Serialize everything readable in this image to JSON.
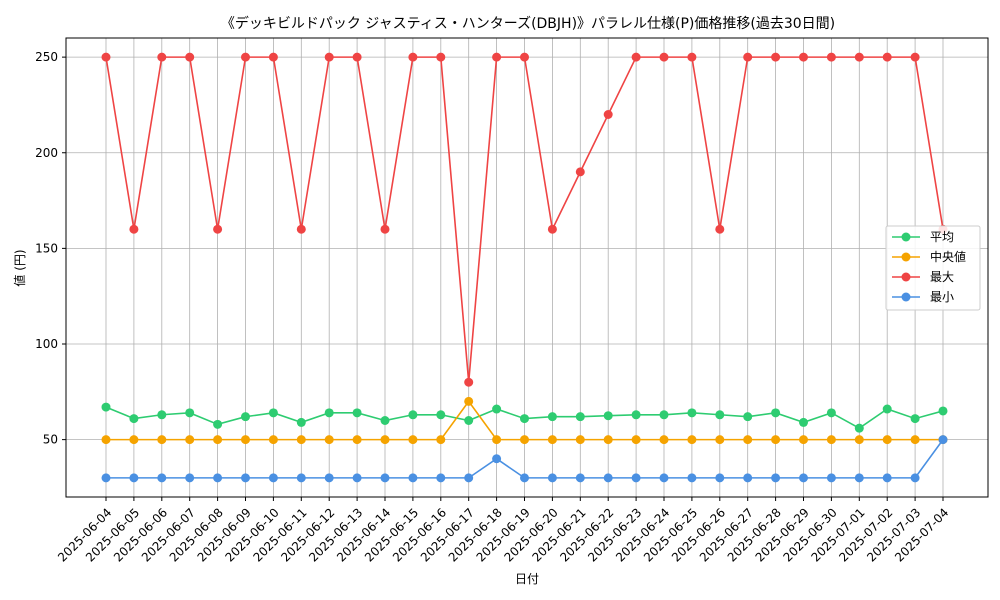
{
  "chart_data": {
    "type": "line",
    "title": "《デッキビルドパック ジャスティス・ハンターズ(DBJH)》パラレル仕様(P)価格推移(過去30日間)",
    "xlabel": "日付",
    "ylabel": "値 (円)",
    "ylim": [
      20,
      260
    ],
    "yticks": [
      50,
      100,
      150,
      200,
      250
    ],
    "grid": true,
    "legend_position": "center-right",
    "categories": [
      "2025-06-04",
      "2025-06-05",
      "2025-06-06",
      "2025-06-07",
      "2025-06-08",
      "2025-06-09",
      "2025-06-10",
      "2025-06-11",
      "2025-06-12",
      "2025-06-13",
      "2025-06-14",
      "2025-06-15",
      "2025-06-16",
      "2025-06-17",
      "2025-06-18",
      "2025-06-19",
      "2025-06-20",
      "2025-06-21",
      "2025-06-22",
      "2025-06-23",
      "2025-06-24",
      "2025-06-25",
      "2025-06-26",
      "2025-06-27",
      "2025-06-28",
      "2025-06-29",
      "2025-06-30",
      "2025-07-01",
      "2025-07-02",
      "2025-07-03",
      "2025-07-04"
    ],
    "series": [
      {
        "name": "平均",
        "color": "#2ecc71",
        "values": [
          67,
          61,
          63,
          64,
          58,
          62,
          64,
          59,
          64,
          64,
          60,
          63,
          63,
          60,
          66,
          61,
          62,
          62,
          62.5,
          63,
          63,
          64,
          63,
          62,
          64,
          59,
          64,
          56,
          66,
          61,
          65
        ]
      },
      {
        "name": "中央値",
        "color": "#f5a300",
        "values": [
          50,
          50,
          50,
          50,
          50,
          50,
          50,
          50,
          50,
          50,
          50,
          50,
          50,
          70,
          50,
          50,
          50,
          50,
          50,
          50,
          50,
          50,
          50,
          50,
          50,
          50,
          50,
          50,
          50,
          50,
          50
        ]
      },
      {
        "name": "最大",
        "color": "#ef4444",
        "values": [
          250,
          160,
          250,
          250,
          160,
          250,
          250,
          160,
          250,
          250,
          160,
          250,
          250,
          80,
          250,
          250,
          160,
          190,
          220,
          250,
          250,
          250,
          160,
          250,
          250,
          250,
          250,
          250,
          250,
          250,
          160
        ]
      },
      {
        "name": "最小",
        "color": "#4a90e2",
        "values": [
          30,
          30,
          30,
          30,
          30,
          30,
          30,
          30,
          30,
          30,
          30,
          30,
          30,
          30,
          40,
          30,
          30,
          30,
          30,
          30,
          30,
          30,
          30,
          30,
          30,
          30,
          30,
          30,
          30,
          30,
          50
        ]
      }
    ]
  }
}
